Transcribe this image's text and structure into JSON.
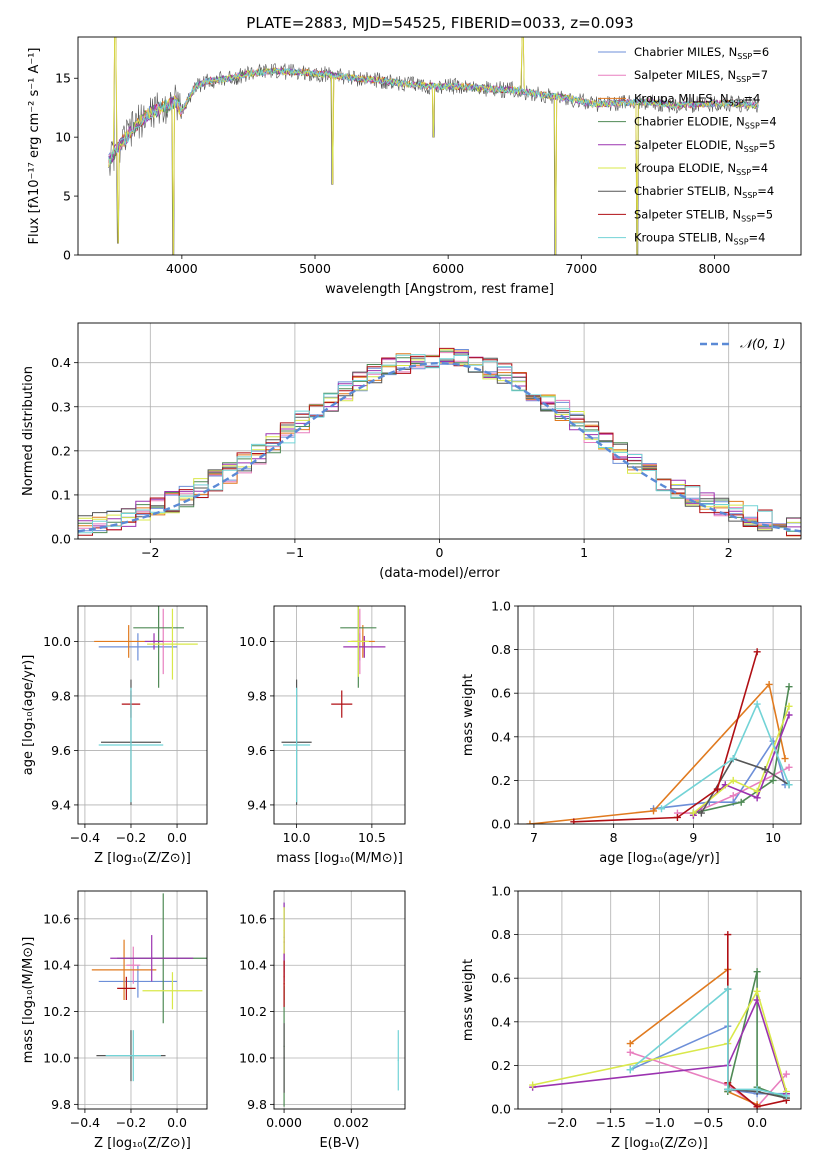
{
  "figure": {
    "title": "PLATE=2883, MJD=54525, FIBERID=0033, z=0.093",
    "series_colors": [
      "#6d8fd8",
      "#e87fbf",
      "#e07a1f",
      "#4f8a55",
      "#9b33b0",
      "#d9e84a",
      "#555555",
      "#b00f14",
      "#72d3d6"
    ]
  },
  "chart_data": [
    {
      "id": "spectrum",
      "type": "line",
      "xlabel": "wavelength [Angstrom, rest frame]",
      "ylabel": "Flux [fλ10⁻¹⁷ erg cm⁻² s⁻¹ A⁻¹]",
      "xlim": [
        3220,
        8650
      ],
      "ylim": [
        0,
        18.5
      ],
      "xticks": [
        "4000",
        "5000",
        "6000",
        "7000",
        "8000"
      ],
      "yticks": [
        "0",
        "5",
        "10",
        "15"
      ],
      "legend_position": "top-right",
      "legend": [
        "Chabrier MILES, NSSP=6",
        "Salpeter MILES, NSSP=7",
        "Kroupa MILES, NSSP=4",
        "Chabrier ELODIE, NSSP=4",
        "Salpeter ELODIE, NSSP=5",
        "Kroupa ELODIE, NSSP=4",
        "Chabrier STELIB, NSSP=4",
        "Salpeter STELIB, NSSP=5",
        "Kroupa STELIB, NSSP=4"
      ],
      "continuum": {
        "x": [
          3450,
          3550,
          3650,
          3750,
          3850,
          3950,
          4000,
          4100,
          4200,
          4300,
          4400,
          4500,
          4700,
          4900,
          5100,
          5300,
          5500,
          5700,
          5900,
          6100,
          6300,
          6500,
          6700,
          6900,
          7100,
          7300,
          7500,
          7700,
          7900,
          8100,
          8300
        ],
        "y": [
          8.0,
          9.5,
          11.0,
          12.0,
          12.5,
          13.0,
          12.2,
          14.3,
          14.8,
          14.9,
          15.1,
          15.4,
          15.6,
          15.5,
          15.3,
          15.0,
          14.8,
          14.5,
          14.3,
          14.3,
          14.1,
          14.0,
          13.6,
          13.3,
          12.8,
          12.9,
          13.0,
          12.7,
          12.8,
          12.9,
          12.7
        ]
      },
      "features": [
        {
          "x": 3500,
          "y": 18.5
        },
        {
          "x": 3520,
          "y": 1.0
        },
        {
          "x": 3935,
          "y": 0
        },
        {
          "x": 5130,
          "y": 6.0
        },
        {
          "x": 5890,
          "y": 10.0
        },
        {
          "x": 6560,
          "y": 18.5
        },
        {
          "x": 6805,
          "y": 0
        },
        {
          "x": 7420,
          "y": 0
        }
      ]
    },
    {
      "id": "residuals",
      "type": "step",
      "xlabel": "(data-model)/error",
      "ylabel": "Normed distribution",
      "xlim": [
        -2.5,
        2.5
      ],
      "ylim": [
        0,
        0.49
      ],
      "xticks": [
        "−2",
        "−1",
        "0",
        "1",
        "2"
      ],
      "yticks": [
        "0.0",
        "0.1",
        "0.2",
        "0.3",
        "0.4"
      ],
      "legend": [
        "𝒩(0, 1)"
      ],
      "legend_position": "top-right",
      "bin_width": 0.1
    },
    {
      "id": "age_vs_z",
      "type": "errorbar",
      "xlabel": "Z [log₁₀(Z/Z⊙)]",
      "ylabel": "age  [log₁₀(age/yr)]",
      "xlim": [
        -0.43,
        0.13
      ],
      "ylim": [
        9.33,
        10.13
      ],
      "xticks": [
        "−0.4",
        "−0.2",
        "0.0"
      ],
      "yticks": [
        "9.4",
        "9.6",
        "9.8",
        "10.0"
      ],
      "points": [
        {
          "x": -0.17,
          "y": 9.98,
          "xerr": 0.17,
          "yerr": 0.05
        },
        {
          "x": -0.06,
          "y": 10.0,
          "xerr": 0.05,
          "yerr": 0.12
        },
        {
          "x": -0.21,
          "y": 10.0,
          "xerr": 0.15,
          "yerr": 0.06
        },
        {
          "x": -0.08,
          "y": 10.05,
          "xerr": 0.11,
          "yerr": 0.22
        },
        {
          "x": -0.1,
          "y": 10.0,
          "xerr": 0.04,
          "yerr": 0.03
        },
        {
          "x": -0.02,
          "y": 9.99,
          "xerr": 0.11,
          "yerr": 0.13
        },
        {
          "x": -0.2,
          "y": 9.63,
          "xerr": 0.13,
          "yerr": 0.23
        },
        {
          "x": -0.2,
          "y": 9.77,
          "xerr": 0.04,
          "yerr": 0.05
        },
        {
          "x": -0.2,
          "y": 9.62,
          "xerr": 0.14,
          "yerr": 0.21
        }
      ]
    },
    {
      "id": "age_vs_mass",
      "type": "errorbar",
      "xlabel": "mass [log₁₀(M/M⊙)]",
      "ylabel": "",
      "xlim": [
        9.85,
        10.72
      ],
      "ylim": [
        9.33,
        10.13
      ],
      "xticks": [
        "10.0",
        "10.5"
      ],
      "yticks": [
        "9.4",
        "9.6",
        "9.8",
        "10.0"
      ],
      "points": [
        {
          "x": 10.42,
          "y": 9.98,
          "xerr": 0.03,
          "yerr": 0.05
        },
        {
          "x": 10.42,
          "y": 10.0,
          "xerr": 0.05,
          "yerr": 0.12
        },
        {
          "x": 10.44,
          "y": 10.0,
          "xerr": 0.08,
          "yerr": 0.06
        },
        {
          "x": 10.41,
          "y": 10.05,
          "xerr": 0.12,
          "yerr": 0.22
        },
        {
          "x": 10.45,
          "y": 9.98,
          "xerr": 0.14,
          "yerr": 0.04
        },
        {
          "x": 10.41,
          "y": 10.0,
          "xerr": 0.07,
          "yerr": 0.13
        },
        {
          "x": 10.0,
          "y": 9.63,
          "xerr": 0.1,
          "yerr": 0.23
        },
        {
          "x": 10.3,
          "y": 9.77,
          "xerr": 0.07,
          "yerr": 0.05
        },
        {
          "x": 10.0,
          "y": 9.62,
          "xerr": 0.09,
          "yerr": 0.21
        }
      ]
    },
    {
      "id": "weight_vs_age",
      "type": "line",
      "xlabel": "age  [log₁₀(age/yr)]",
      "ylabel": "mass weight",
      "xlim": [
        6.8,
        10.35
      ],
      "ylim": [
        0,
        1
      ],
      "xticks": [
        "7",
        "8",
        "9",
        "10"
      ],
      "yticks": [
        "0.0",
        "0.2",
        "0.4",
        "0.6",
        "0.8",
        "1.0"
      ],
      "series": [
        {
          "x": [
            8.5,
            9.2,
            9.5,
            10.0,
            10.15
          ],
          "y": [
            0.07,
            0.1,
            0.1,
            0.38,
            0.18
          ]
        },
        {
          "x": [
            8.8,
            9.0,
            9.5,
            10.2
          ],
          "y": [
            0.05,
            0.05,
            0.13,
            0.26
          ]
        },
        {
          "x": [
            6.95,
            8.5,
            9.95,
            10.15
          ],
          "y": [
            0.0,
            0.06,
            0.64,
            0.3
          ]
        },
        {
          "x": [
            9.0,
            9.6,
            10.0,
            10.2
          ],
          "y": [
            0.05,
            0.1,
            0.2,
            0.63
          ]
        },
        {
          "x": [
            9.0,
            9.4,
            9.8,
            10.2
          ],
          "y": [
            0.04,
            0.18,
            0.12,
            0.5
          ]
        },
        {
          "x": [
            9.0,
            9.5,
            9.8,
            10.2
          ],
          "y": [
            0.05,
            0.2,
            0.15,
            0.54
          ]
        },
        {
          "x": [
            9.1,
            9.5,
            9.9,
            10.2
          ],
          "y": [
            0.05,
            0.3,
            0.25,
            0.18
          ]
        },
        {
          "x": [
            7.5,
            8.8,
            9.3,
            9.8
          ],
          "y": [
            0.01,
            0.03,
            0.16,
            0.79
          ]
        },
        {
          "x": [
            8.6,
            9.5,
            9.8,
            10.2
          ],
          "y": [
            0.07,
            0.3,
            0.55,
            0.18
          ]
        }
      ]
    },
    {
      "id": "mass_vs_z",
      "type": "errorbar",
      "xlabel": "Z [log₁₀(Z/Z⊙)]",
      "ylabel": "mass [log₁₀(M/M⊙)]",
      "xlim": [
        -0.43,
        0.13
      ],
      "ylim": [
        9.78,
        10.72
      ],
      "xticks": [
        "−0.4",
        "−0.2",
        "0.0"
      ],
      "yticks": [
        "9.8",
        "10.0",
        "10.2",
        "10.4",
        "10.6"
      ],
      "points": [
        {
          "x": -0.17,
          "y": 10.33,
          "xerr": 0.17,
          "yerr": 0.07
        },
        {
          "x": -0.19,
          "y": 10.4,
          "xerr": 0.03,
          "yerr": 0.08
        },
        {
          "x": -0.23,
          "y": 10.38,
          "xerr": 0.14,
          "yerr": 0.13
        },
        {
          "x": -0.06,
          "y": 10.43,
          "xerr": 0.2,
          "yerr": 0.28
        },
        {
          "x": -0.11,
          "y": 10.43,
          "xerr": 0.18,
          "yerr": 0.1
        },
        {
          "x": -0.02,
          "y": 10.29,
          "xerr": 0.13,
          "yerr": 0.08
        },
        {
          "x": -0.2,
          "y": 10.01,
          "xerr": 0.15,
          "yerr": 0.11
        },
        {
          "x": -0.22,
          "y": 10.3,
          "xerr": 0.04,
          "yerr": 0.05
        },
        {
          "x": -0.19,
          "y": 10.01,
          "xerr": 0.12,
          "yerr": 0.11
        }
      ]
    },
    {
      "id": "mass_vs_ebv",
      "type": "errorbar",
      "xlabel": "E(B-V)",
      "ylabel": "",
      "xlim": [
        -0.0003,
        0.0036
      ],
      "ylim": [
        9.78,
        10.72
      ],
      "xticks": [
        "0.000",
        "0.002"
      ],
      "yticks": [
        "9.8",
        "10.0",
        "10.2",
        "10.4",
        "10.6"
      ],
      "points": [
        {
          "x": 0.0,
          "y": 10.52,
          "xerr": 2e-05,
          "yerr": 0.15
        },
        {
          "x": 0.0,
          "y": 10.45,
          "xerr": 2e-05,
          "yerr": 0.1
        },
        {
          "x": 0.0,
          "y": 10.35,
          "xerr": 2e-05,
          "yerr": 0.1
        },
        {
          "x": 0.0,
          "y": 10.05,
          "xerr": 2e-05,
          "yerr": 0.26
        },
        {
          "x": 0.0,
          "y": 10.5,
          "xerr": 2e-05,
          "yerr": 0.17
        },
        {
          "x": 0.0,
          "y": 10.55,
          "xerr": 2e-05,
          "yerr": 0.1
        },
        {
          "x": 0.0,
          "y": 10.0,
          "xerr": 2e-05,
          "yerr": 0.15
        },
        {
          "x": 0.0,
          "y": 10.32,
          "xerr": 2e-05,
          "yerr": 0.1
        },
        {
          "x": 0.0034,
          "y": 9.99,
          "xerr": 2e-05,
          "yerr": 0.13
        }
      ]
    },
    {
      "id": "weight_vs_z",
      "type": "line",
      "xlabel": "Z [log₁₀(Z/Z⊙)]",
      "ylabel": "mass weight",
      "xlim": [
        -2.45,
        0.45
      ],
      "ylim": [
        0,
        1
      ],
      "xticks": [
        "−2.0",
        "−1.5",
        "−1.0",
        "−0.5",
        "0.0"
      ],
      "yticks": [
        "0.0",
        "0.2",
        "0.4",
        "0.6",
        "0.8",
        "1.0"
      ],
      "series": [
        {
          "x": [
            -1.3,
            -0.3,
            -0.3,
            0.0,
            0.3
          ],
          "y": [
            0.18,
            0.38,
            0.09,
            0.07,
            0.07
          ]
        },
        {
          "x": [
            -1.3,
            -0.3,
            0.0,
            0.3
          ],
          "y": [
            0.26,
            0.11,
            0.01,
            0.16
          ]
        },
        {
          "x": [
            -1.3,
            -0.3,
            -0.3,
            0.0
          ],
          "y": [
            0.3,
            0.64,
            0.08,
            0.02
          ]
        },
        {
          "x": [
            -0.3,
            0.0,
            0.0,
            0.3
          ],
          "y": [
            0.08,
            0.63,
            0.1,
            0.05
          ]
        },
        {
          "x": [
            -2.3,
            -0.3,
            0.0,
            0.3
          ],
          "y": [
            0.1,
            0.2,
            0.5,
            0.07
          ]
        },
        {
          "x": [
            -2.3,
            -0.3,
            0.0,
            0.3
          ],
          "y": [
            0.11,
            0.3,
            0.54,
            0.08
          ]
        },
        {
          "x": [
            -0.3,
            -0.3,
            0.0,
            0.3
          ],
          "y": [
            0.55,
            0.09,
            0.08,
            0.05
          ]
        },
        {
          "x": [
            -0.3,
            -0.3,
            0.0,
            0.3
          ],
          "y": [
            0.8,
            0.12,
            0.01,
            0.04
          ]
        },
        {
          "x": [
            -1.3,
            -0.3,
            -0.3,
            0.0,
            0.3
          ],
          "y": [
            0.18,
            0.55,
            0.09,
            0.09,
            0.06
          ]
        }
      ]
    }
  ]
}
